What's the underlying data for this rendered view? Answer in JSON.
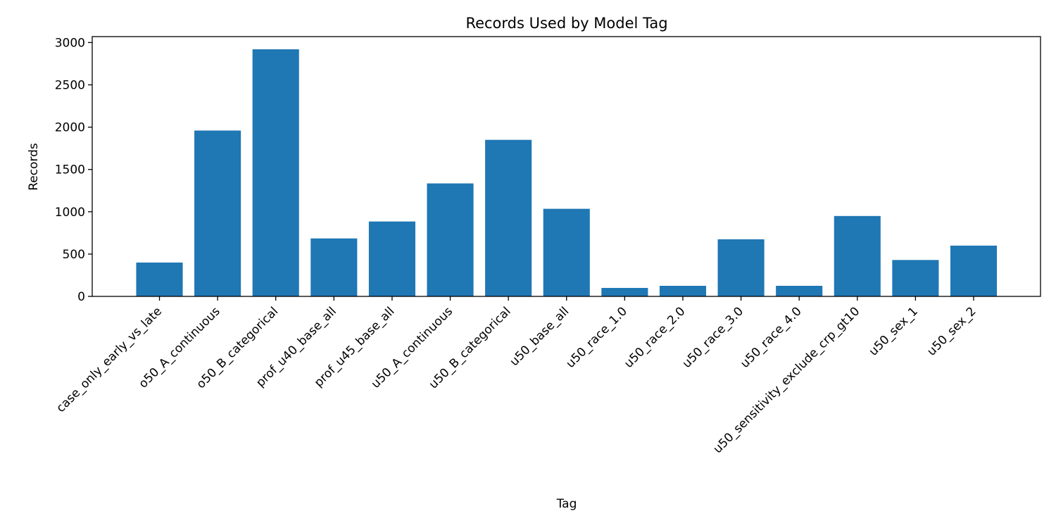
{
  "chart_data": {
    "type": "bar",
    "title": "Records Used by Model Tag",
    "xlabel": "Tag",
    "ylabel": "Records",
    "ylim": [
      0,
      3070
    ],
    "yticks": [
      0,
      500,
      1000,
      1500,
      2000,
      2500,
      3000
    ],
    "grid": false,
    "bar_color": "#1f77b4",
    "categories": [
      "case_only_early_vs_late",
      "o50_A_continuous",
      "o50_B_categorical",
      "prof_u40_base_all",
      "prof_u45_base_all",
      "u50_A_continuous",
      "u50_B_categorical",
      "u50_base_all",
      "u50_race_1.0",
      "u50_race_2.0",
      "u50_race_3.0",
      "u50_race_4.0",
      "u50_sensitivity_exclude_crp_gt10",
      "u50_sex_1",
      "u50_sex_2"
    ],
    "values": [
      400,
      1960,
      2920,
      685,
      885,
      1335,
      1850,
      1035,
      100,
      125,
      675,
      125,
      950,
      430,
      600
    ]
  }
}
